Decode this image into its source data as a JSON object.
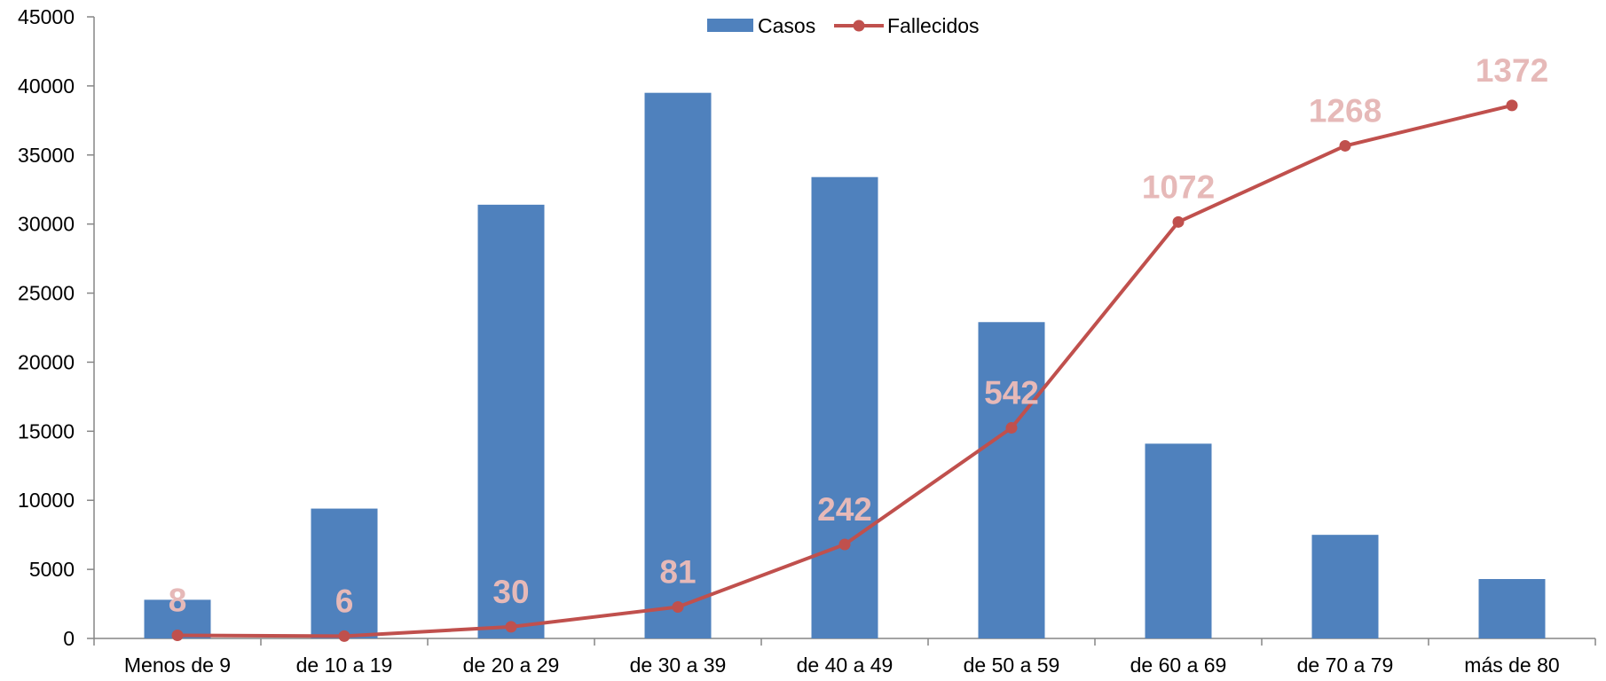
{
  "chart_data": {
    "type": "bar",
    "title": "",
    "xlabel": "",
    "ylabel": "",
    "categories": [
      "Menos de 9",
      "de 10 a 19",
      "de 20 a 29",
      "de 30 a 39",
      "de 40 a 49",
      "de 50 a 59",
      "de 60 a 69",
      "de 70 a 79",
      "más de 80"
    ],
    "ylim": [
      0,
      45000
    ],
    "yticks": [
      "0",
      "5000",
      "10000",
      "15000",
      "20000",
      "25000",
      "30000",
      "35000",
      "40000",
      "45000"
    ],
    "grid": false,
    "legend_position": "top-center",
    "series": [
      {
        "name": "Casos",
        "type": "bar",
        "color": "#4F81BD",
        "values": [
          2800,
          9400,
          31400,
          39500,
          33400,
          22900,
          14100,
          7500,
          4300
        ]
      },
      {
        "name": "Fallecidos",
        "type": "line",
        "color": "#C0504D",
        "label_color": "#E6B9B8",
        "values": [
          8,
          6,
          30,
          81,
          242,
          542,
          1072,
          1268,
          1372
        ],
        "data_labels": [
          "8",
          "6",
          "30",
          "81",
          "242",
          "542",
          "1072",
          "1268",
          "1372"
        ],
        "secondary_axis": true
      }
    ]
  }
}
